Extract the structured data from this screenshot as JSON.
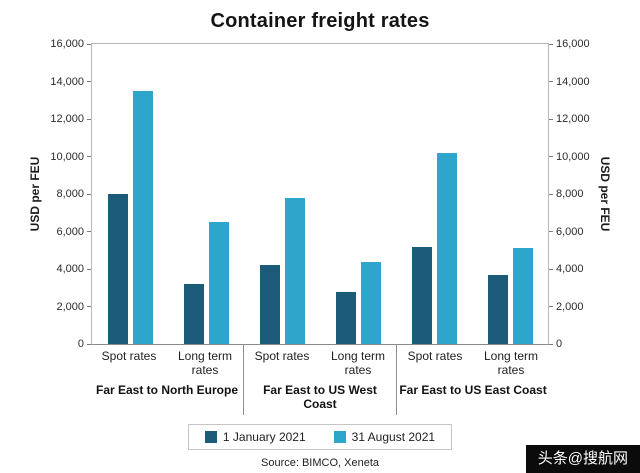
{
  "chart_data": {
    "type": "bar",
    "title": "Container freight rates",
    "ylabel": "USD per FEU",
    "ylim": [
      0,
      16000
    ],
    "ytick_step": 2000,
    "grid": false,
    "legend_position": "bottom",
    "source": "Source: BIMCO, Xeneta",
    "series": [
      {
        "name": "1 January 2021",
        "color": "#1b5a78"
      },
      {
        "name": "31 August 2021",
        "color": "#2ea6cc"
      }
    ],
    "groups": [
      {
        "label": "Far East to North Europe",
        "categories": [
          {
            "label": "Spot rates",
            "values": [
              8000,
              13500
            ]
          },
          {
            "label": "Long term rates",
            "values": [
              3200,
              6500
            ]
          }
        ]
      },
      {
        "label": "Far East to US West Coast",
        "categories": [
          {
            "label": "Spot rates",
            "values": [
              4200,
              7800
            ]
          },
          {
            "label": "Long term rates",
            "values": [
              2800,
              4400
            ]
          }
        ]
      },
      {
        "label": "Far East to US East Coast",
        "categories": [
          {
            "label": "Spot rates",
            "values": [
              5200,
              10200
            ]
          },
          {
            "label": "Long term rates",
            "values": [
              3700,
              5100
            ]
          }
        ]
      }
    ]
  },
  "watermark": {
    "text": "头条@搜航网"
  }
}
